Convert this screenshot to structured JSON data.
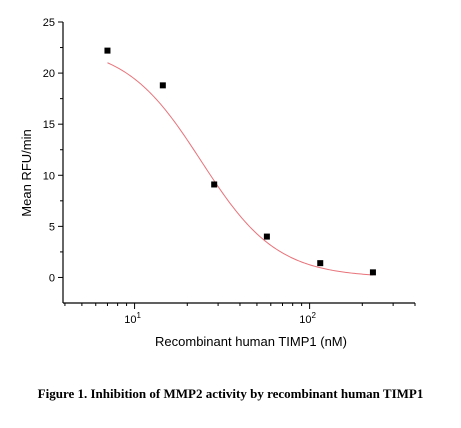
{
  "chart_data": {
    "type": "scatter",
    "title": "",
    "xlabel": "Recombinant human TIMP1 (nM)",
    "ylabel": "Mean RFU/min",
    "xscale": "log",
    "xlim": [
      3.9,
      400
    ],
    "ylim": [
      -2.5,
      25
    ],
    "xticks": [
      {
        "value": 10,
        "base": "10",
        "exp": "1"
      },
      {
        "value": 100,
        "base": "10",
        "exp": "2"
      }
    ],
    "yticks": [
      0,
      5,
      10,
      15,
      20,
      25
    ],
    "grid": false,
    "colors": {
      "points": "#000000",
      "fit_line": "#e8737a"
    },
    "series": [
      {
        "points": [
          {
            "x": 7.0,
            "y": 22.2
          },
          {
            "x": 14.5,
            "y": 18.8
          },
          {
            "x": 28.5,
            "y": 9.1
          },
          {
            "x": 57,
            "y": 4.0
          },
          {
            "x": 115,
            "y": 1.4
          },
          {
            "x": 230,
            "y": 0.5
          }
        ]
      }
    ],
    "fit": {
      "type": "sigmoid",
      "top": 22.8,
      "bottom": 0,
      "ic50": 24,
      "hill": 2.0
    }
  },
  "caption": "Figure 1. Inhibition of MMP2 activity by recombinant human TIMP1"
}
